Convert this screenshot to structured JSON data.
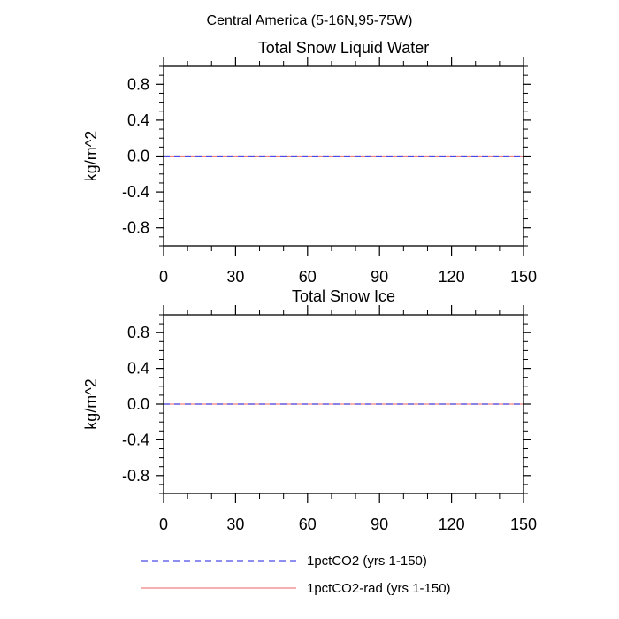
{
  "figure_title": "Central America (5-16N,95-75W)",
  "legend": [
    {
      "label": "1pctCO2 (yrs 1-150)",
      "color": "#4a4ae8",
      "dash": true
    },
    {
      "label": "1pctCO2-rad (yrs 1-150)",
      "color": "#f08080",
      "dash": false
    }
  ],
  "chart_data": [
    {
      "type": "line",
      "title": "Total Snow Liquid Water",
      "xlabel": "",
      "ylabel": "kg/m^2",
      "xlim": [
        0,
        150
      ],
      "ylim": [
        -1.0,
        1.0
      ],
      "xticks": [
        0,
        30,
        60,
        90,
        120,
        150
      ],
      "xtick_labels": [
        "0",
        "30",
        "60",
        "90",
        "120",
        "150"
      ],
      "yticks": [
        0.8,
        0.4,
        0.0,
        -0.4,
        -0.8
      ],
      "ytick_labels": [
        "0.8",
        "0.4",
        "0.0",
        "-0.4",
        "-0.8"
      ],
      "grid": false,
      "series": [
        {
          "name": "1pctCO2 (yrs 1-150)",
          "x": [
            0,
            150
          ],
          "y": [
            0.0,
            0.0
          ]
        },
        {
          "name": "1pctCO2-rad (yrs 1-150)",
          "x": [
            0,
            150
          ],
          "y": [
            0.0,
            0.0
          ]
        }
      ]
    },
    {
      "type": "line",
      "title": "Total Snow Ice",
      "xlabel": "",
      "ylabel": "kg/m^2",
      "xlim": [
        0,
        150
      ],
      "ylim": [
        -1.0,
        1.0
      ],
      "xticks": [
        0,
        30,
        60,
        90,
        120,
        150
      ],
      "xtick_labels": [
        "0",
        "30",
        "60",
        "90",
        "120",
        "150"
      ],
      "yticks": [
        0.8,
        0.4,
        0.0,
        -0.4,
        -0.8
      ],
      "ytick_labels": [
        "0.8",
        "0.4",
        "0.0",
        "-0.4",
        "-0.8"
      ],
      "grid": false,
      "series": [
        {
          "name": "1pctCO2 (yrs 1-150)",
          "x": [
            0,
            150
          ],
          "y": [
            0.0,
            0.0
          ]
        },
        {
          "name": "1pctCO2-rad (yrs 1-150)",
          "x": [
            0,
            150
          ],
          "y": [
            0.0,
            0.0
          ]
        }
      ]
    }
  ]
}
